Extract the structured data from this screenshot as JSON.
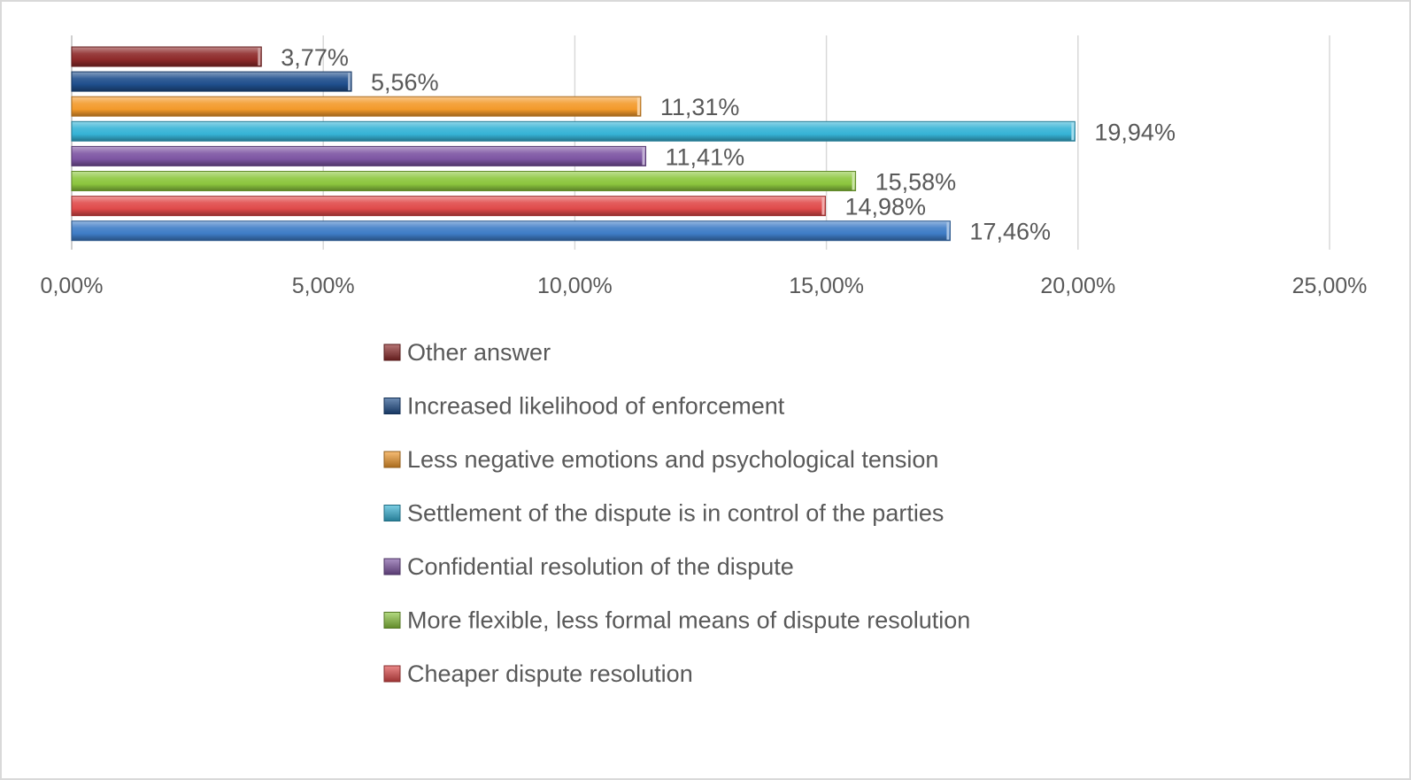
{
  "chart_data": {
    "type": "bar",
    "orientation": "horizontal",
    "bar_style": "3d-cylinder",
    "xlim": [
      0,
      25
    ],
    "xticks": [
      0,
      5,
      10,
      15,
      20,
      25
    ],
    "tick_labels": [
      "0,00%",
      "5,00%",
      "10,00%",
      "15,00%",
      "20,00%",
      "25,00%"
    ],
    "grid": "vertical",
    "legend_position": "bottom",
    "series": [
      {
        "name": "Other answer",
        "value": 3.77,
        "label": "3,77%",
        "color": "#8e2a2a"
      },
      {
        "name": "Increased likelihood of enforcement",
        "value": 5.56,
        "label": "5,56%",
        "color": "#1f4e8c"
      },
      {
        "name": "Less negative emotions and psychological tension",
        "value": 11.31,
        "label": "11,31%",
        "color": "#f39a2b"
      },
      {
        "name": "Settlement of the dispute is in control of the parties",
        "value": 19.94,
        "label": "19,94%",
        "color": "#36b3d6"
      },
      {
        "name": "Confidential resolution of the dispute",
        "value": 11.41,
        "label": "11,41%",
        "color": "#7d55a3"
      },
      {
        "name": "More flexible, less formal means of dispute resolution",
        "value": 15.58,
        "label": "15,58%",
        "color": "#8cc63e"
      },
      {
        "name": "Cheaper dispute resolution",
        "value": 14.98,
        "label": "14,98%",
        "color": "#e04a4a"
      },
      {
        "name": "",
        "value": 17.46,
        "label": "17,46%",
        "color": "#3e7cc6"
      }
    ]
  }
}
